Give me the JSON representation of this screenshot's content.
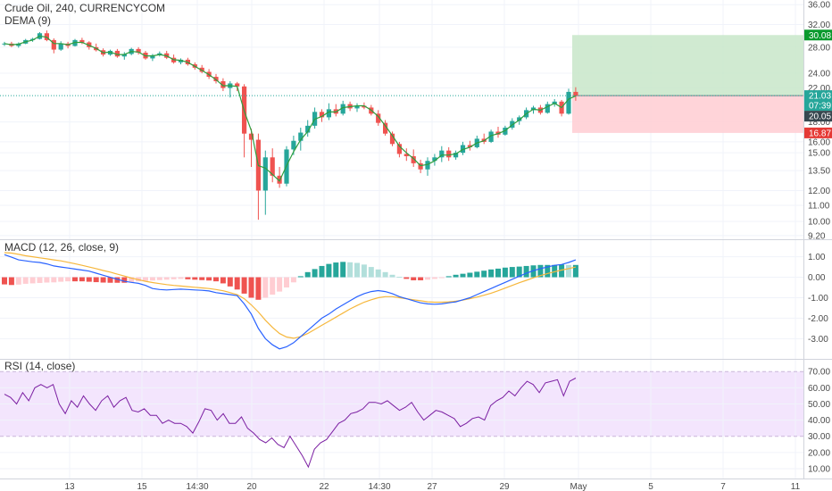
{
  "header": {
    "symbol_title": "Crude Oil, 240, CURRENCYCOM",
    "dema_label": "DEMA (9)",
    "macd_label": "MACD (12, 26, close, 9)",
    "rsi_label": "RSI (14, close)"
  },
  "colors": {
    "up": "#26a69a",
    "down": "#ef5350",
    "dema": "#2e9e3e",
    "macd_line": "#2962ff",
    "signal_line": "#f6b73c",
    "hist_up_strong": "#26a69a",
    "hist_up_weak": "#b2dfdb",
    "hist_down_strong": "#ef5350",
    "hist_down_weak": "#ffcdd2",
    "rsi_line": "#7b1fa2",
    "rsi_band": "#f3e5fd",
    "target_zone": "#c8e6c9",
    "stop_zone": "#ffcdd2",
    "tag_green": "#0a9a2d",
    "tag_teal": "#26a69a",
    "tag_red": "#e53935",
    "tag_dark": "#37474f"
  },
  "chart_data": {
    "type": "candlestick",
    "x_axis": {
      "ticks": [
        "13",
        "15",
        "14:30",
        "20",
        "22",
        "14:30",
        "27",
        "29",
        "May",
        "5",
        "7",
        "11"
      ]
    },
    "price_axis": {
      "scale": "log",
      "range": [
        9.0,
        37.0
      ],
      "ticks": [
        "36.00",
        "32.00",
        "28.00",
        "24.00",
        "22.00",
        "18.00",
        "16.00",
        "15.00",
        "13.50",
        "12.00",
        "11.00",
        "10.00",
        "9.20"
      ]
    },
    "candles": [
      [
        28.5,
        28.9,
        28.2,
        28.6
      ],
      [
        28.6,
        28.9,
        28.0,
        28.2
      ],
      [
        28.2,
        28.8,
        27.9,
        28.6
      ],
      [
        28.6,
        29.4,
        28.5,
        29.2
      ],
      [
        29.2,
        29.6,
        28.9,
        29.4
      ],
      [
        29.4,
        30.6,
        29.3,
        30.4
      ],
      [
        30.4,
        30.9,
        29.0,
        29.2
      ],
      [
        29.2,
        29.5,
        27.0,
        27.6
      ],
      [
        27.6,
        29.0,
        27.4,
        28.6
      ],
      [
        28.6,
        28.9,
        27.8,
        28.2
      ],
      [
        28.2,
        29.4,
        28.1,
        29.2
      ],
      [
        29.2,
        29.6,
        28.5,
        28.8
      ],
      [
        28.8,
        29.0,
        27.6,
        28.0
      ],
      [
        28.0,
        28.6,
        27.3,
        27.5
      ],
      [
        27.5,
        27.8,
        26.5,
        26.8
      ],
      [
        26.8,
        27.6,
        26.6,
        27.4
      ],
      [
        27.4,
        27.7,
        26.3,
        26.5
      ],
      [
        26.5,
        27.2,
        26.0,
        26.9
      ],
      [
        26.9,
        27.9,
        26.7,
        27.7
      ],
      [
        27.7,
        28.0,
        26.8,
        27.1
      ],
      [
        27.1,
        27.4,
        26.0,
        26.2
      ],
      [
        26.2,
        26.9,
        25.8,
        26.7
      ],
      [
        26.7,
        27.3,
        26.5,
        27.0
      ],
      [
        27.0,
        27.4,
        26.1,
        26.3
      ],
      [
        26.3,
        26.8,
        25.4,
        25.6
      ],
      [
        25.6,
        26.2,
        25.3,
        26.0
      ],
      [
        26.0,
        26.3,
        25.1,
        25.3
      ],
      [
        25.3,
        25.6,
        24.5,
        24.8
      ],
      [
        24.8,
        25.2,
        24.0,
        24.2
      ],
      [
        24.2,
        24.6,
        23.2,
        23.5
      ],
      [
        23.5,
        23.9,
        22.6,
        22.9
      ],
      [
        22.9,
        23.3,
        21.6,
        22.0
      ],
      [
        22.0,
        22.9,
        20.8,
        22.6
      ],
      [
        22.6,
        22.8,
        21.6,
        22.2
      ],
      [
        22.2,
        22.5,
        14.6,
        16.8
      ],
      [
        16.8,
        17.3,
        13.8,
        16.2
      ],
      [
        16.2,
        16.8,
        10.1,
        12.0
      ],
      [
        12.0,
        15.2,
        10.4,
        14.6
      ],
      [
        14.6,
        15.4,
        12.6,
        13.1
      ],
      [
        13.1,
        13.8,
        12.2,
        12.5
      ],
      [
        12.5,
        15.6,
        12.3,
        15.3
      ],
      [
        15.3,
        16.6,
        14.8,
        16.1
      ],
      [
        16.1,
        17.4,
        15.2,
        16.9
      ],
      [
        16.9,
        18.2,
        16.5,
        17.6
      ],
      [
        17.6,
        19.6,
        17.3,
        19.1
      ],
      [
        19.1,
        19.4,
        18.0,
        18.5
      ],
      [
        18.5,
        20.1,
        18.2,
        19.4
      ],
      [
        19.4,
        20.0,
        18.6,
        18.9
      ],
      [
        18.9,
        20.4,
        18.7,
        20.0
      ],
      [
        20.0,
        20.3,
        19.2,
        19.5
      ],
      [
        19.5,
        20.1,
        19.1,
        19.8
      ],
      [
        19.8,
        20.2,
        19.4,
        19.6
      ],
      [
        19.6,
        19.9,
        18.7,
        18.9
      ],
      [
        18.9,
        19.3,
        17.6,
        17.9
      ],
      [
        17.9,
        18.2,
        16.6,
        16.8
      ],
      [
        16.8,
        17.0,
        15.6,
        15.8
      ],
      [
        15.8,
        16.0,
        14.6,
        14.9
      ],
      [
        14.9,
        15.4,
        14.3,
        14.7
      ],
      [
        14.7,
        15.3,
        13.8,
        14.1
      ],
      [
        14.1,
        14.4,
        13.3,
        13.6
      ],
      [
        13.6,
        14.6,
        13.1,
        14.3
      ],
      [
        14.3,
        14.9,
        13.9,
        14.6
      ],
      [
        14.6,
        15.6,
        14.2,
        15.2
      ],
      [
        15.2,
        15.5,
        14.3,
        14.6
      ],
      [
        14.6,
        15.2,
        14.4,
        15.0
      ],
      [
        15.0,
        16.0,
        14.8,
        15.7
      ],
      [
        15.7,
        16.1,
        15.2,
        15.5
      ],
      [
        15.5,
        16.6,
        15.4,
        16.3
      ],
      [
        16.3,
        16.8,
        15.8,
        16.0
      ],
      [
        16.0,
        17.2,
        15.9,
        17.0
      ],
      [
        17.0,
        17.5,
        16.4,
        16.7
      ],
      [
        16.7,
        17.6,
        16.6,
        17.4
      ],
      [
        17.4,
        18.4,
        17.2,
        18.1
      ],
      [
        18.1,
        18.7,
        17.7,
        18.5
      ],
      [
        18.5,
        19.6,
        18.3,
        19.3
      ],
      [
        19.3,
        19.8,
        18.9,
        19.6
      ],
      [
        19.6,
        19.9,
        18.8,
        19.0
      ],
      [
        19.0,
        20.3,
        18.9,
        20.0
      ],
      [
        20.0,
        20.6,
        19.7,
        20.3
      ],
      [
        20.3,
        20.5,
        18.6,
        18.9
      ],
      [
        18.9,
        21.9,
        18.8,
        21.5
      ],
      [
        21.5,
        22.1,
        20.4,
        21.03
      ]
    ],
    "dema": [
      28.6,
      28.4,
      28.5,
      28.9,
      29.2,
      29.9,
      29.7,
      28.6,
      28.6,
      28.4,
      28.8,
      28.8,
      28.3,
      27.8,
      27.1,
      27.2,
      26.8,
      26.8,
      27.3,
      27.2,
      26.6,
      26.6,
      26.8,
      26.6,
      26.0,
      25.9,
      25.6,
      25.0,
      24.4,
      23.8,
      23.1,
      22.3,
      22.3,
      22.2,
      19.2,
      17.1,
      13.9,
      13.7,
      13.2,
      12.7,
      13.9,
      15.1,
      16.2,
      17.0,
      18.3,
      18.6,
      19.1,
      19.1,
      19.6,
      19.7,
      19.8,
      19.8,
      19.3,
      18.6,
      17.6,
      16.6,
      15.6,
      15.0,
      14.5,
      13.9,
      14.0,
      14.3,
      14.8,
      14.8,
      14.9,
      15.3,
      15.5,
      15.9,
      16.1,
      16.6,
      16.8,
      17.1,
      17.7,
      18.2,
      18.9,
      19.4,
      19.3,
      19.7,
      20.1,
      19.6,
      20.6,
      21.0
    ],
    "levels": {
      "entry": 21.03,
      "stop": 16.87,
      "target": 30.08,
      "countdown": "07:39",
      "secondary": "20.05"
    },
    "macd": {
      "y_range": [
        -3.9,
        1.55
      ],
      "ticks": [
        "1.00",
        "0.00",
        "-1.00",
        "-2.00",
        "-3.00"
      ],
      "macd_line": [
        1.1,
        0.98,
        0.85,
        0.8,
        0.75,
        0.72,
        0.65,
        0.55,
        0.5,
        0.45,
        0.4,
        0.35,
        0.3,
        0.2,
        0.1,
        0.0,
        -0.1,
        -0.2,
        -0.25,
        -0.3,
        -0.4,
        -0.55,
        -0.6,
        -0.62,
        -0.6,
        -0.58,
        -0.6,
        -0.62,
        -0.64,
        -0.67,
        -0.75,
        -0.8,
        -0.85,
        -0.9,
        -1.3,
        -1.8,
        -2.5,
        -3.0,
        -3.3,
        -3.5,
        -3.4,
        -3.2,
        -2.9,
        -2.6,
        -2.3,
        -2.0,
        -1.8,
        -1.55,
        -1.35,
        -1.15,
        -0.95,
        -0.8,
        -0.7,
        -0.65,
        -0.7,
        -0.8,
        -0.95,
        -1.05,
        -1.15,
        -1.25,
        -1.3,
        -1.32,
        -1.3,
        -1.25,
        -1.2,
        -1.1,
        -1.0,
        -0.85,
        -0.7,
        -0.55,
        -0.4,
        -0.25,
        -0.1,
        0.05,
        0.2,
        0.32,
        0.42,
        0.5,
        0.58,
        0.62,
        0.72,
        0.85
      ],
      "signal_line": [
        1.2,
        1.18,
        1.12,
        1.05,
        1.0,
        0.95,
        0.9,
        0.85,
        0.8,
        0.73,
        0.66,
        0.58,
        0.5,
        0.42,
        0.33,
        0.25,
        0.15,
        0.06,
        -0.04,
        -0.12,
        -0.2,
        -0.26,
        -0.31,
        -0.36,
        -0.4,
        -0.43,
        -0.46,
        -0.49,
        -0.52,
        -0.55,
        -0.6,
        -0.66,
        -0.75,
        -0.85,
        -1.05,
        -1.35,
        -1.7,
        -2.1,
        -2.45,
        -2.75,
        -2.92,
        -2.98,
        -2.9,
        -2.75,
        -2.55,
        -2.35,
        -2.15,
        -1.95,
        -1.75,
        -1.55,
        -1.38,
        -1.22,
        -1.1,
        -1.0,
        -0.95,
        -0.95,
        -1.0,
        -1.05,
        -1.1,
        -1.15,
        -1.2,
        -1.22,
        -1.22,
        -1.2,
        -1.17,
        -1.12,
        -1.05,
        -0.97,
        -0.88,
        -0.78,
        -0.66,
        -0.53,
        -0.4,
        -0.27,
        -0.15,
        -0.03,
        0.08,
        0.18,
        0.27,
        0.35,
        0.42,
        0.5
      ],
      "histogram": [
        -0.35,
        -0.38,
        -0.36,
        -0.32,
        -0.3,
        -0.28,
        -0.26,
        -0.25,
        -0.22,
        -0.2,
        -0.2,
        -0.2,
        -0.22,
        -0.24,
        -0.26,
        -0.27,
        -0.27,
        -0.27,
        -0.24,
        -0.2,
        -0.18,
        -0.16,
        -0.14,
        -0.12,
        -0.1,
        -0.08,
        -0.1,
        -0.12,
        -0.14,
        -0.16,
        -0.2,
        -0.3,
        -0.45,
        -0.6,
        -0.8,
        -1.0,
        -1.1,
        -1.0,
        -0.85,
        -0.7,
        -0.5,
        -0.25,
        0.05,
        0.25,
        0.4,
        0.55,
        0.65,
        0.72,
        0.75,
        0.73,
        0.7,
        0.62,
        0.5,
        0.38,
        0.25,
        0.12,
        0.02,
        -0.08,
        -0.15,
        -0.15,
        -0.12,
        -0.08,
        -0.03,
        0.05,
        0.12,
        0.17,
        0.22,
        0.27,
        0.32,
        0.38,
        0.42,
        0.47,
        0.5,
        0.52,
        0.55,
        0.58,
        0.6,
        0.6,
        0.6,
        0.62,
        0.6,
        0.6
      ]
    },
    "rsi": {
      "y_range": [
        5,
        74
      ],
      "band": [
        30,
        70
      ],
      "ticks": [
        "70.00",
        "60.00",
        "50.00",
        "40.00",
        "30.00",
        "20.00",
        "10.00"
      ],
      "values": [
        56,
        54,
        50,
        57,
        52,
        60,
        62,
        60,
        62,
        50,
        44,
        52,
        48,
        55,
        50,
        46,
        52,
        55,
        48,
        52,
        54,
        46,
        45,
        47,
        43,
        43,
        38,
        40,
        38,
        38,
        36,
        32,
        39,
        47,
        46,
        40,
        44,
        38,
        38,
        42,
        35,
        32,
        28,
        26,
        29,
        25,
        23,
        30,
        24,
        18,
        11,
        22,
        26,
        28,
        33,
        38,
        40,
        44,
        45,
        47,
        51,
        51,
        50,
        52,
        49,
        46,
        48,
        51,
        45,
        40,
        43,
        46,
        45,
        43,
        41,
        36,
        38,
        41,
        42,
        40,
        49,
        52,
        54,
        58,
        55,
        60,
        64,
        62,
        57,
        63,
        64,
        65,
        55,
        64,
        66
      ],
      "x_start_index": -13
    }
  }
}
